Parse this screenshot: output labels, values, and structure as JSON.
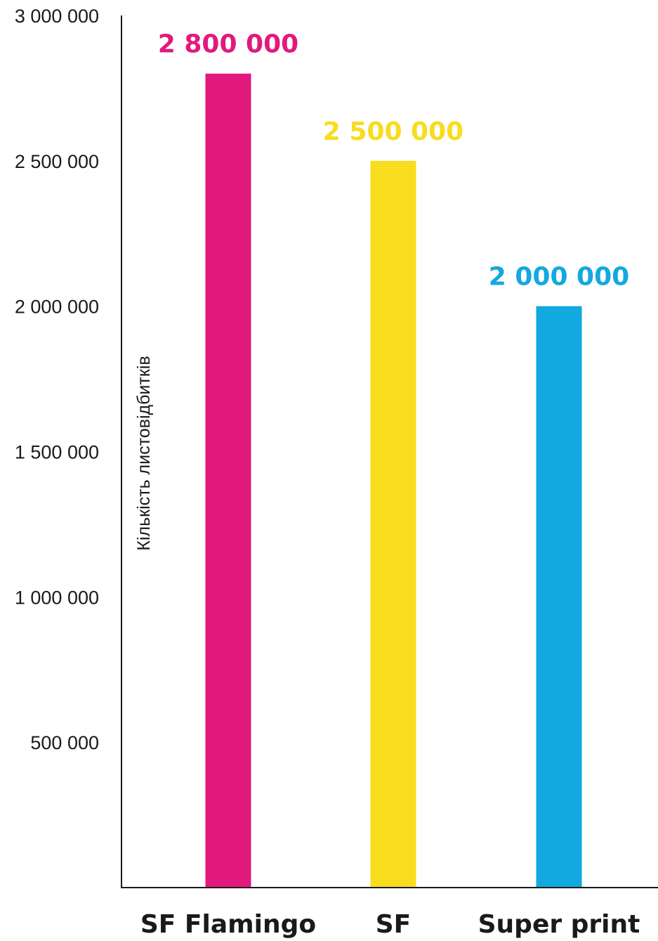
{
  "chart_data": {
    "type": "bar",
    "title": "",
    "xlabel": "",
    "ylabel": "Кількість листовідбитків",
    "categories": [
      "SF Flamingo",
      "SF",
      "Super print"
    ],
    "values": [
      2800000,
      2500000,
      2000000
    ],
    "data_labels": [
      "2 800 000",
      "2 500 000",
      "2 000 000"
    ],
    "colors": [
      "#e2197c",
      "#f8dc1e",
      "#12a8e0"
    ],
    "ylim": [
      0,
      3000000
    ],
    "yticks": [
      {
        "value": 3000000,
        "label": "3 000 000"
      },
      {
        "value": 2500000,
        "label": "2 500 000"
      },
      {
        "value": 2000000,
        "label": "2 000 000"
      },
      {
        "value": 1500000,
        "label": "1 500 000"
      },
      {
        "value": 1000000,
        "label": "1 000 000"
      },
      {
        "value": 500000,
        "label": "500 000"
      }
    ],
    "grid": false,
    "legend": "none"
  }
}
